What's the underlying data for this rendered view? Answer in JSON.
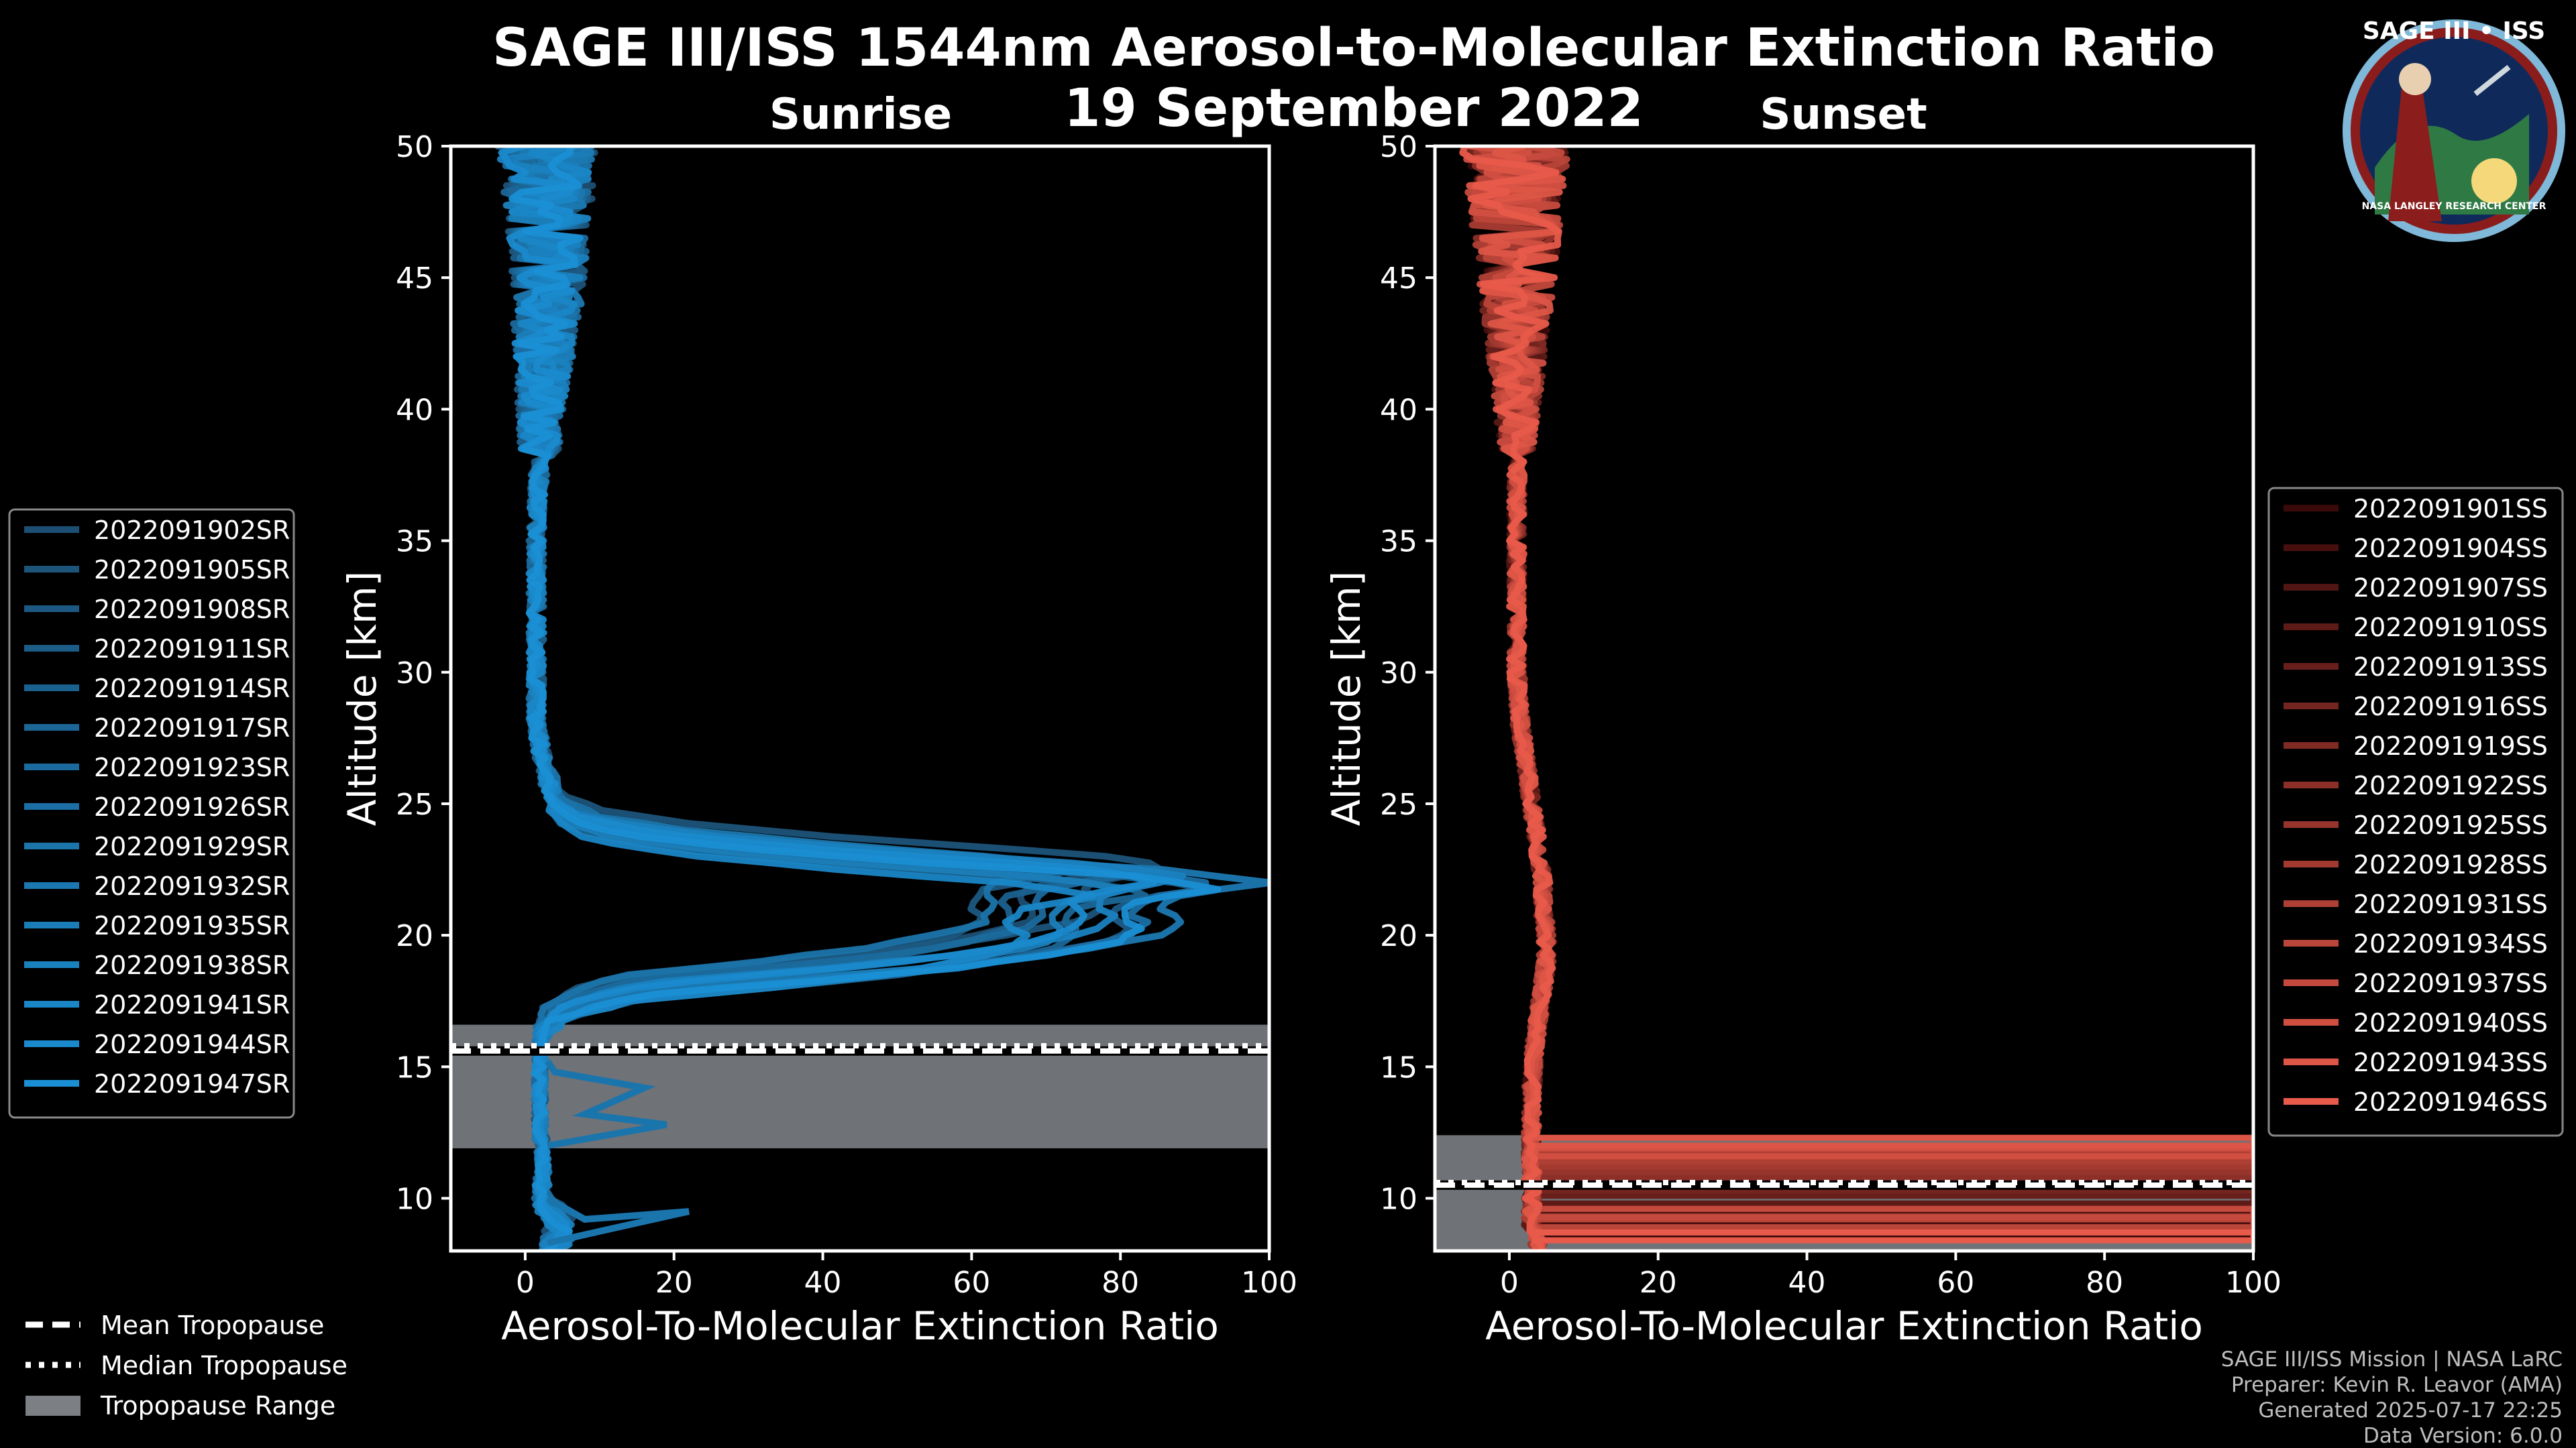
{
  "title": "SAGE III/ISS 1544nm Aerosol-to-Molecular Extinction Ratio",
  "date": "19 September 2022",
  "logo": {
    "text": "SAGE III • ISS",
    "subtext": "NASA LANGLEY RESEARCH CENTER"
  },
  "legend_common": {
    "mean": "Mean Tropopause",
    "median": "Median Tropopause",
    "range": "Tropopause Range"
  },
  "credits": [
    "SAGE III/ISS Mission | NASA LaRC",
    "Preparer: Kevin R. Leavor (AMA)",
    "Generated 2025-07-17 22:25",
    "Data Version: 6.0.0"
  ],
  "chart_data": [
    {
      "type": "line",
      "panel": "sunrise",
      "subtitle": "Sunrise",
      "xlabel": "Aerosol-To-Molecular Extinction Ratio",
      "ylabel": "Altitude [km]",
      "xlim": [
        -10,
        100
      ],
      "ylim": [
        8,
        50
      ],
      "xticks": [
        0,
        20,
        40,
        60,
        80,
        100
      ],
      "yticks": [
        10,
        15,
        20,
        25,
        30,
        35,
        40,
        45,
        50
      ],
      "legend_position": "left-outside",
      "tropopause": {
        "mean": 15.6,
        "median": 15.8,
        "range": [
          11.9,
          16.6
        ]
      },
      "colors": {
        "dark": "#1c4f73",
        "light": "#1a8fd4"
      },
      "template_profile": [
        [
          8.2,
          3
        ],
        [
          8.8,
          6
        ],
        [
          9.5,
          3
        ],
        [
          10,
          2
        ],
        [
          10.5,
          2
        ],
        [
          11,
          2.5
        ],
        [
          12,
          2
        ],
        [
          13,
          2
        ],
        [
          14,
          2
        ],
        [
          15,
          2
        ],
        [
          16,
          2
        ],
        [
          16.5,
          2.5
        ],
        [
          17,
          4
        ],
        [
          17.5,
          8
        ],
        [
          18,
          16
        ],
        [
          18.5,
          35
        ],
        [
          19,
          52
        ],
        [
          19.5,
          62
        ],
        [
          20,
          70
        ],
        [
          20.5,
          72
        ],
        [
          21,
          70
        ],
        [
          21.5,
          72
        ],
        [
          22,
          82
        ],
        [
          22.5,
          70
        ],
        [
          23,
          45
        ],
        [
          23.5,
          25
        ],
        [
          24,
          12
        ],
        [
          24.5,
          6
        ],
        [
          25,
          4
        ],
        [
          26,
          3
        ],
        [
          27,
          2
        ],
        [
          28,
          1.5
        ],
        [
          30,
          1.5
        ],
        [
          32,
          1.5
        ],
        [
          34,
          1.5
        ],
        [
          36,
          1.5
        ],
        [
          38,
          2
        ],
        [
          40,
          2
        ],
        [
          42,
          2.5
        ],
        [
          44,
          3
        ],
        [
          46,
          3
        ],
        [
          48,
          3
        ],
        [
          50,
          3
        ]
      ],
      "series": [
        {
          "name": "2022091902SR",
          "peak": 78,
          "shift": 0.4
        },
        {
          "name": "2022091905SR",
          "peak": 88,
          "shift": 0.6
        },
        {
          "name": "2022091908SR",
          "peak": 70,
          "shift": 0.2
        },
        {
          "name": "2022091911SR",
          "peak": 92,
          "shift": -0.2
        },
        {
          "name": "2022091914SR",
          "peak": 75,
          "shift": 0.1
        },
        {
          "name": "2022091917SR",
          "peak": 85,
          "shift": -0.4
        },
        {
          "name": "2022091923SR",
          "peak": 80,
          "shift": 0.3
        },
        {
          "name": "2022091926SR",
          "peak": 95,
          "shift": -0.1
        },
        {
          "name": "2022091929SR",
          "peak": 72,
          "shift": 0.5
        },
        {
          "name": "2022091932SR",
          "peak": 100,
          "shift": 0.0
        },
        {
          "name": "2022091935SR",
          "peak": 82,
          "shift": -0.3
        },
        {
          "name": "2022091938SR",
          "peak": 90,
          "shift": 0.2
        },
        {
          "name": "2022091941SR",
          "peak": 76,
          "shift": -0.5
        },
        {
          "name": "2022091944SR",
          "peak": 86,
          "shift": 0.1
        },
        {
          "name": "2022091947SR",
          "peak": 94,
          "shift": -0.2
        }
      ],
      "outliers": [
        {
          "points": [
            [
              8.3,
              3
            ],
            [
              9.5,
              22
            ],
            [
              9.2,
              8
            ],
            [
              10,
              3
            ]
          ]
        },
        {
          "points": [
            [
              12,
              3
            ],
            [
              12.8,
              19
            ],
            [
              13.2,
              8
            ],
            [
              14.2,
              16
            ],
            [
              14.8,
              4
            ],
            [
              15.2,
              3
            ]
          ]
        }
      ]
    },
    {
      "type": "line",
      "panel": "sunset",
      "subtitle": "Sunset",
      "xlabel": "Aerosol-To-Molecular Extinction Ratio",
      "ylabel": "Altitude [km]",
      "xlim": [
        -10,
        100
      ],
      "ylim": [
        8,
        50
      ],
      "xticks": [
        0,
        20,
        40,
        60,
        80,
        100
      ],
      "yticks": [
        10,
        15,
        20,
        25,
        30,
        35,
        40,
        45,
        50
      ],
      "legend_position": "right-outside",
      "tropopause": {
        "mean": 10.5,
        "median": 10.6,
        "range": [
          8,
          12.4
        ]
      },
      "colors": {
        "dark": "#3a0a0a",
        "light": "#e85a4a"
      },
      "template_profile": [
        [
          8,
          3
        ],
        [
          9,
          2
        ],
        [
          10,
          2
        ],
        [
          11,
          2
        ],
        [
          12,
          2
        ],
        [
          13,
          2
        ],
        [
          14,
          2
        ],
        [
          15,
          2.2
        ],
        [
          16,
          2.5
        ],
        [
          17,
          3
        ],
        [
          18,
          3.5
        ],
        [
          19,
          4
        ],
        [
          20,
          4
        ],
        [
          21,
          3.5
        ],
        [
          22,
          3.5
        ],
        [
          23,
          3
        ],
        [
          24,
          2.5
        ],
        [
          25,
          2
        ],
        [
          26,
          1.5
        ],
        [
          27,
          1
        ],
        [
          28,
          0.5
        ],
        [
          30,
          0
        ],
        [
          32,
          0
        ],
        [
          34,
          0
        ],
        [
          36,
          0
        ],
        [
          38,
          0
        ],
        [
          40,
          0
        ],
        [
          42,
          0
        ],
        [
          44,
          0
        ],
        [
          46,
          0
        ],
        [
          48,
          0
        ],
        [
          50,
          0
        ]
      ],
      "series": [
        {
          "name": "2022091901SS",
          "low_alt": 8.6
        },
        {
          "name": "2022091904SS",
          "low_alt": 9.1
        },
        {
          "name": "2022091907SS",
          "low_alt": 9.5
        },
        {
          "name": "2022091910SS",
          "low_alt": 9.8
        },
        {
          "name": "2022091913SS",
          "low_alt": 10.1
        },
        {
          "name": "2022091916SS",
          "low_alt": 10.3
        },
        {
          "name": "2022091919SS",
          "low_alt": 10.6
        },
        {
          "name": "2022091922SS",
          "low_alt": 10.8
        },
        {
          "name": "2022091925SS",
          "low_alt": 11.0
        },
        {
          "name": "2022091928SS",
          "low_alt": 11.2
        },
        {
          "name": "2022091931SS",
          "low_alt": 11.4
        },
        {
          "name": "2022091934SS",
          "low_alt": 8.9
        },
        {
          "name": "2022091937SS",
          "low_alt": 9.3
        },
        {
          "name": "2022091940SS",
          "low_alt": 11.6
        },
        {
          "name": "2022091943SS",
          "low_alt": 12.0
        },
        {
          "name": "2022091946SS",
          "low_alt": 8.4
        }
      ]
    }
  ]
}
